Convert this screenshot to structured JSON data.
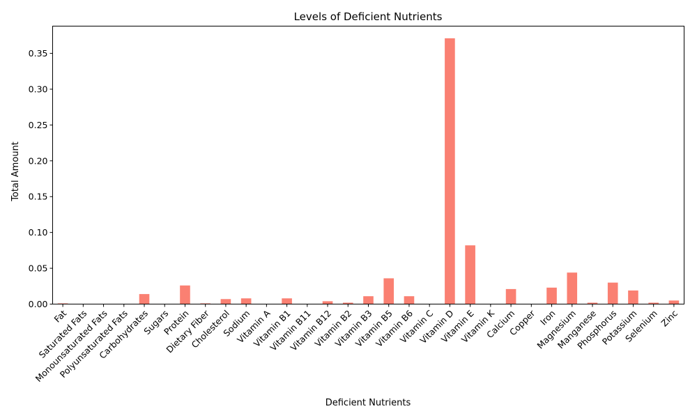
{
  "chart_data": {
    "type": "bar",
    "title": "Levels of Deficient Nutrients",
    "xlabel": "Deficient Nutrients",
    "ylabel": "Total Amount",
    "ylim": [
      0,
      0.388
    ],
    "yticks": [
      "0.00",
      "0.05",
      "0.10",
      "0.15",
      "0.20",
      "0.25",
      "0.30",
      "0.35"
    ],
    "bar_color": "#fa8072",
    "grid": false,
    "legend": "none",
    "categories": [
      "Fat",
      "Saturated Fats",
      "Monounsaturated Fats",
      "Polyunsaturated Fats",
      "Carbohydrates",
      "Sugars",
      "Protein",
      "Dietary Fiber",
      "Cholesterol",
      "Sodium",
      "Vitamin A",
      "Vitamin B1",
      "Vitamin B11",
      "Vitamin B12",
      "Vitamin B2",
      "Vitamin B3",
      "Vitamin B5",
      "Vitamin B6",
      "Vitamin C",
      "Vitamin D",
      "Vitamin E",
      "Vitamin K",
      "Calcium",
      "Copper",
      "Iron",
      "Magnesium",
      "Manganese",
      "Phosphorus",
      "Potassium",
      "Selenium",
      "Zinc"
    ],
    "values": [
      0.001,
      0.0,
      0.0,
      0.0,
      0.014,
      0.0,
      0.026,
      0.001,
      0.007,
      0.008,
      0.0,
      0.008,
      0.0,
      0.004,
      0.002,
      0.011,
      0.036,
      0.011,
      0.0,
      0.371,
      0.082,
      0.0,
      0.021,
      0.0,
      0.023,
      0.044,
      0.002,
      0.03,
      0.019,
      0.002,
      0.005
    ]
  }
}
